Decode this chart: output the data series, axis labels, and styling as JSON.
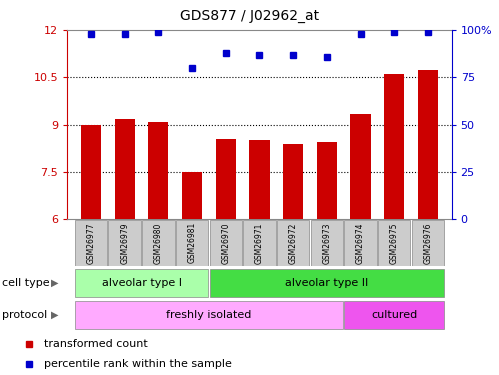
{
  "title": "GDS877 / J02962_at",
  "samples": [
    "GSM26977",
    "GSM26979",
    "GSM26980",
    "GSM26981",
    "GSM26970",
    "GSM26971",
    "GSM26972",
    "GSM26973",
    "GSM26974",
    "GSM26975",
    "GSM26976"
  ],
  "bar_values": [
    9.0,
    9.18,
    9.08,
    7.5,
    8.55,
    8.5,
    8.38,
    8.45,
    9.35,
    10.62,
    10.72
  ],
  "dot_values": [
    98,
    98,
    99,
    80,
    88,
    87,
    87,
    86,
    98,
    99,
    99
  ],
  "bar_color": "#cc0000",
  "dot_color": "#0000cc",
  "left_ylim": [
    6,
    12
  ],
  "left_yticks": [
    6,
    7.5,
    9,
    10.5,
    12
  ],
  "left_ytick_labels": [
    "6",
    "7.5",
    "9",
    "10.5",
    "12"
  ],
  "right_ylim": [
    0,
    100
  ],
  "right_yticks": [
    0,
    25,
    50,
    75,
    100
  ],
  "right_ytick_labels": [
    "0",
    "25",
    "50",
    "75",
    "100%"
  ],
  "dotted_lines": [
    7.5,
    9.0,
    10.5
  ],
  "cell_type_groups": [
    {
      "label": "alveolar type I",
      "start": 0,
      "end": 3,
      "color": "#aaffaa"
    },
    {
      "label": "alveolar type II",
      "start": 4,
      "end": 10,
      "color": "#44dd44"
    }
  ],
  "protocol_groups": [
    {
      "label": "freshly isolated",
      "start": 0,
      "end": 7,
      "color": "#ffaaff"
    },
    {
      "label": "cultured",
      "start": 8,
      "end": 10,
      "color": "#ee55ee"
    }
  ],
  "cell_type_label": "cell type",
  "protocol_label": "protocol",
  "legend_items": [
    {
      "label": "transformed count",
      "color": "#cc0000"
    },
    {
      "label": "percentile rank within the sample",
      "color": "#0000cc"
    }
  ],
  "box_color": "#cccccc",
  "box_ec": "#888888"
}
